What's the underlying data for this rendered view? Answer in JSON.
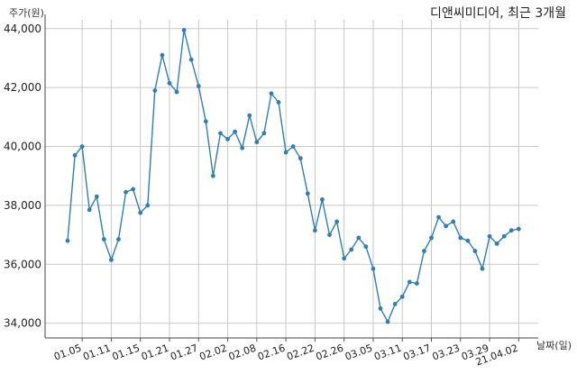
{
  "chart_data": {
    "type": "line",
    "title": "디앤씨미디어, 최근 3개월",
    "ylabel": "주가(원)",
    "xlabel": "날짜(일)",
    "ylim": [
      33500,
      44300
    ],
    "yticks": [
      34000,
      36000,
      38000,
      40000,
      42000,
      44000
    ],
    "ytick_labels": [
      "34,000",
      "36,000",
      "38,000",
      "40,000",
      "42,000",
      "44,000"
    ],
    "xtick_labels": [
      "01.05",
      "01.11",
      "01.15",
      "01.21",
      "01.27",
      "02.02",
      "02.08",
      "02.16",
      "02.22",
      "02.26",
      "03.05",
      "03.11",
      "03.17",
      "03.23",
      "03.29",
      "21.04.02"
    ],
    "xtick_positions": [
      2,
      6,
      10,
      14,
      18,
      22,
      26,
      30,
      34,
      38,
      42,
      46,
      50,
      54,
      58,
      62
    ],
    "color": "#2f7fb5",
    "grid": true,
    "values": [
      36800,
      39700,
      40000,
      37850,
      38300,
      36850,
      36150,
      36850,
      38450,
      38550,
      37750,
      38000,
      41900,
      43100,
      42150,
      41850,
      43950,
      42950,
      42050,
      40850,
      39000,
      40450,
      40250,
      40500,
      39950,
      41050,
      40150,
      40450,
      41800,
      41500,
      39800,
      40000,
      39600,
      38400,
      37150,
      38200,
      37000,
      37450,
      36200,
      36500,
      36900,
      36600,
      35850,
      34500,
      34050,
      34650,
      34900,
      35400,
      35350,
      36450,
      36900,
      37600,
      37300,
      37450,
      36900,
      36800,
      36450,
      35850,
      36950,
      36700,
      36950,
      37150,
      37200
    ]
  }
}
